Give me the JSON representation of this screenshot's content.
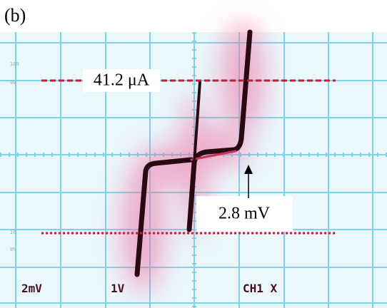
{
  "panel_label": "(b)",
  "annotations": {
    "current": "41.2 μA",
    "voltage": "2.8 mV"
  },
  "scope_labels": {
    "ch1_scale": "2mV",
    "ch2_scale": "1V",
    "mode": "CH1 X"
  },
  "side_labels": {
    "top": "100",
    "upper": "90",
    "lower": "10",
    "bottom": "0%"
  }
}
